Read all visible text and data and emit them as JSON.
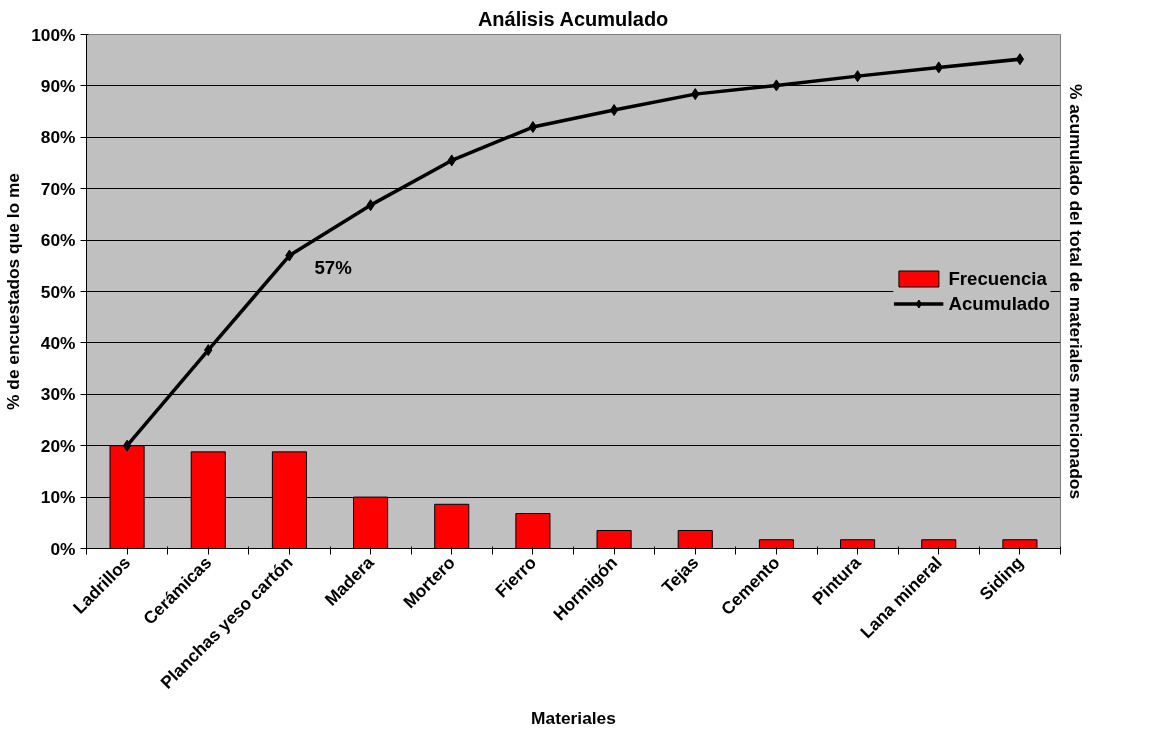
{
  "chart_data": {
    "type": "bar",
    "title": "Análisis Acumulado",
    "xlabel": "Materiales",
    "ylabel": "% de encuestados que lo me",
    "y2label": "% acumulado del total de materiales mencionados",
    "categories": [
      "Ladrillos",
      "Cerámicas",
      "Planchas yeso cartón",
      "Madera",
      "Mortero",
      "Fierro",
      "Hormigón",
      "Tejas",
      "Cemento",
      "Pintura",
      "Lana mineral",
      "Siding"
    ],
    "series": [
      {
        "name": "Frecuencia",
        "color": "#ff0000",
        "values": [
          20,
          18.8,
          18.8,
          10,
          8.6,
          6.8,
          3.5,
          3.5,
          1.7,
          1.7,
          1.7,
          1.7
        ]
      },
      {
        "name": "Acumulado",
        "type": "line",
        "color": "#000000",
        "marker": "diamond",
        "values": [
          20,
          38.6,
          57,
          66.8,
          75.5,
          82,
          85.3,
          88.4,
          90.1,
          91.9,
          93.6,
          95.2
        ]
      }
    ],
    "ylim": [
      0,
      100
    ],
    "yticks": [
      {
        "value": 0,
        "label": "0%"
      },
      {
        "value": 10,
        "label": "10%"
      },
      {
        "value": 20,
        "label": "20%"
      },
      {
        "value": 30,
        "label": "30%"
      },
      {
        "value": 40,
        "label": "40%"
      },
      {
        "value": 50,
        "label": "50%"
      },
      {
        "value": 60,
        "label": "60%"
      },
      {
        "value": 70,
        "label": "70%"
      },
      {
        "value": 80,
        "label": "80%"
      },
      {
        "value": 90,
        "label": "90%"
      },
      {
        "value": 100,
        "label": "100%"
      }
    ],
    "grid": "y",
    "legend": "right",
    "annotations": [
      {
        "text": "57%",
        "x": "Planchas yeso cartón",
        "y": 57
      }
    ]
  }
}
